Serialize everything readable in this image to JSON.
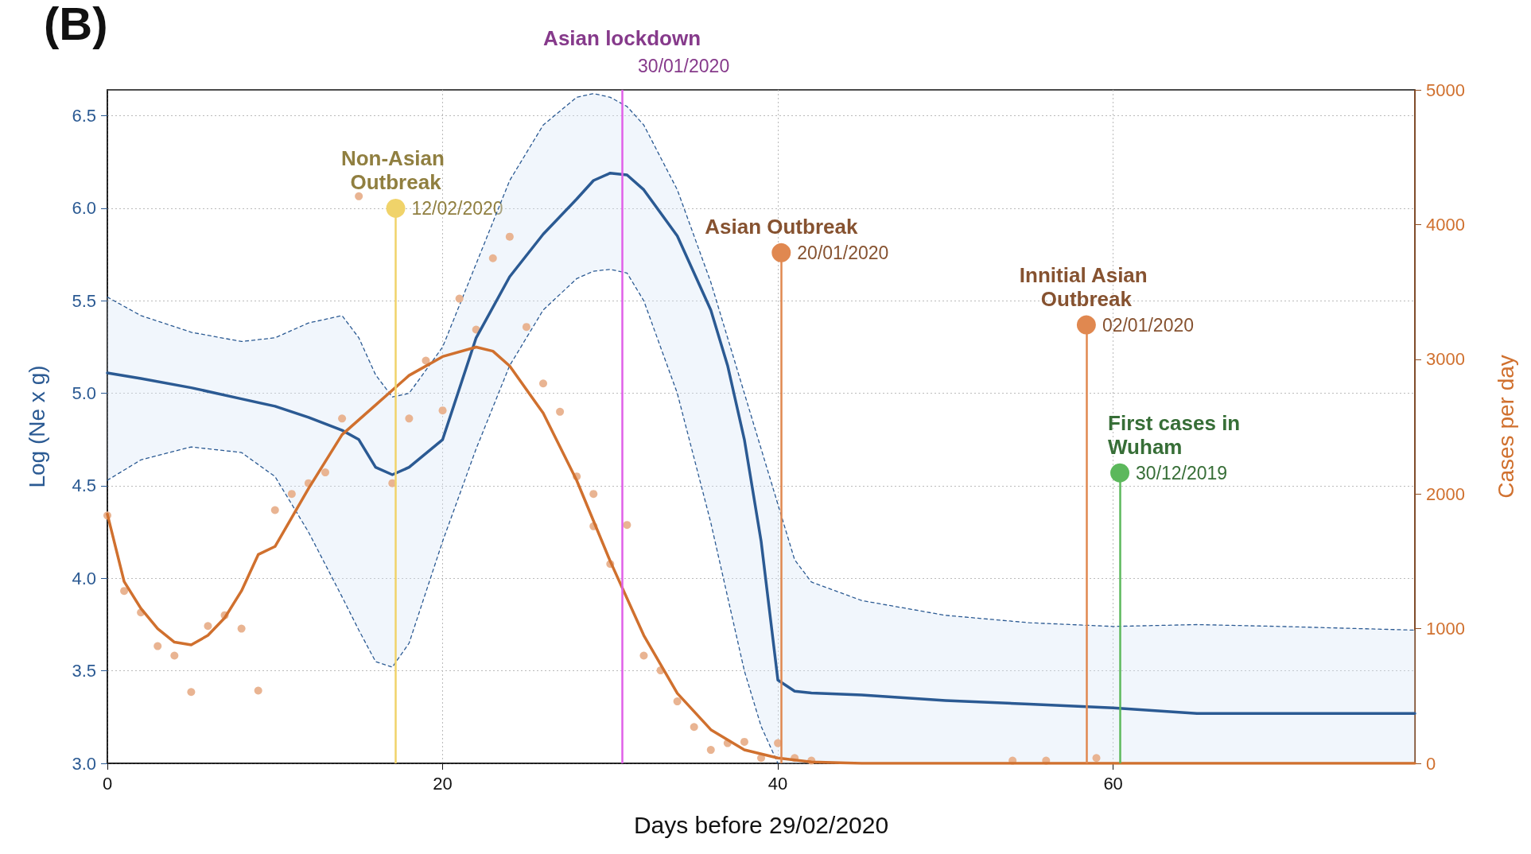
{
  "chart_data": {
    "type": "line",
    "title": "(B)",
    "xlabel": "Days before 29/02/2020",
    "ylabel": "Log (Ne x g)",
    "y2label": "Cases per day",
    "xlim": [
      0,
      78
    ],
    "xticks": [
      0,
      20,
      40,
      60
    ],
    "ylim": [
      3.0,
      6.64
    ],
    "yticks": [
      {
        "value": 3,
        "label": "3.0"
      },
      3.5,
      {
        "value": 4,
        "label": "4.0"
      },
      4.5,
      {
        "value": 5,
        "label": "5.0"
      },
      5.5,
      {
        "value": 6,
        "label": "6.0"
      },
      6.5
    ],
    "y2lim": [
      0,
      5000
    ],
    "y2ticks": [
      0,
      1000,
      2000,
      3000,
      4000,
      5000
    ],
    "grid": true,
    "series": [
      {
        "color": "#2b5a93",
        "marker": "none",
        "line_style": "solid",
        "x": [
          0,
          2,
          5,
          8,
          10,
          12,
          14,
          15,
          16,
          17,
          18,
          20,
          22,
          24,
          26,
          28,
          29,
          30,
          31,
          32,
          34,
          36,
          37,
          38,
          39,
          40,
          41,
          42,
          45,
          50,
          55,
          60,
          65,
          70,
          78
        ],
        "values": [
          5.11,
          5.08,
          5.03,
          4.97,
          4.93,
          4.87,
          4.8,
          4.75,
          4.6,
          4.56,
          4.6,
          4.75,
          5.3,
          5.63,
          5.86,
          6.05,
          6.15,
          6.19,
          6.18,
          6.1,
          5.85,
          5.45,
          5.15,
          4.75,
          4.2,
          3.45,
          3.39,
          3.38,
          3.37,
          3.34,
          3.32,
          3.3,
          3.27,
          3.27,
          3.27
        ],
        "lower": [
          4.53,
          4.64,
          4.71,
          4.68,
          4.55,
          4.25,
          3.9,
          3.72,
          3.55,
          3.52,
          3.65,
          4.2,
          4.7,
          5.15,
          5.45,
          5.62,
          5.66,
          5.67,
          5.65,
          5.5,
          5.0,
          4.3,
          3.9,
          3.5,
          3.2,
          3.0,
          3.0,
          3.0,
          3.0,
          3.0,
          3.0,
          3.0,
          3.0,
          3.0,
          3.0
        ],
        "upper": [
          5.52,
          5.42,
          5.33,
          5.28,
          5.3,
          5.38,
          5.42,
          5.3,
          5.1,
          4.98,
          5.0,
          5.25,
          5.7,
          6.15,
          6.45,
          6.6,
          6.62,
          6.6,
          6.55,
          6.45,
          6.1,
          5.6,
          5.3,
          5.0,
          4.7,
          4.4,
          4.1,
          3.98,
          3.88,
          3.8,
          3.76,
          3.74,
          3.75,
          3.74,
          3.72
        ]
      },
      {
        "color": "#2b5a93",
        "marker": "none",
        "line_style": "dashed",
        "x": [
          0,
          2,
          5,
          8,
          10,
          12,
          14,
          15,
          16,
          17,
          18,
          20,
          22,
          24,
          26,
          28,
          29,
          30,
          31,
          32,
          34,
          36,
          37,
          38,
          39,
          40,
          41,
          42,
          45,
          50,
          55,
          60,
          65,
          70,
          78
        ],
        "values": [
          5.52,
          5.42,
          5.33,
          5.28,
          5.3,
          5.38,
          5.42,
          5.3,
          5.1,
          4.98,
          5.0,
          5.25,
          5.7,
          6.15,
          6.45,
          6.6,
          6.62,
          6.6,
          6.55,
          6.45,
          6.1,
          5.6,
          5.3,
          5.0,
          4.7,
          4.4,
          4.1,
          3.98,
          3.88,
          3.8,
          3.76,
          3.74,
          3.75,
          3.74,
          3.72
        ]
      },
      {
        "color": "#2b5a93",
        "marker": "none",
        "line_style": "dashed",
        "x": [
          0,
          2,
          5,
          8,
          10,
          12,
          14,
          15,
          16,
          17,
          18,
          20,
          22,
          24,
          26,
          28,
          29,
          30,
          31,
          32,
          34,
          36,
          37,
          38,
          39,
          40
        ],
        "values": [
          4.53,
          4.64,
          4.71,
          4.68,
          4.55,
          4.25,
          3.9,
          3.72,
          3.55,
          3.52,
          3.65,
          4.2,
          4.7,
          5.15,
          5.45,
          5.62,
          5.66,
          5.67,
          5.65,
          5.5,
          5.0,
          4.3,
          3.9,
          3.5,
          3.2,
          3.0
        ]
      },
      {
        "axis": "y2",
        "color": "#d0702e",
        "marker": "none",
        "line_style": "solid",
        "x": [
          0,
          1,
          2,
          3,
          4,
          5,
          6,
          7,
          8,
          9,
          10,
          12,
          14,
          16,
          18,
          20,
          22,
          23,
          24,
          26,
          28,
          30,
          32,
          34,
          36,
          38,
          40,
          42,
          45,
          50,
          60,
          78
        ],
        "values": [
          1850,
          1350,
          1150,
          1000,
          900,
          880,
          950,
          1080,
          1280,
          1550,
          1610,
          2040,
          2440,
          2660,
          2880,
          3020,
          3090,
          3060,
          2950,
          2600,
          2100,
          1500,
          950,
          520,
          250,
          100,
          40,
          10,
          0,
          0,
          0,
          0
        ]
      },
      {
        "type": "scatter",
        "axis": "y2",
        "color": "#e8b08c",
        "marker": "circle",
        "x": [
          0,
          1,
          2,
          3,
          4,
          5,
          6,
          7,
          8,
          9,
          10,
          11,
          12,
          13,
          14,
          15,
          17,
          18,
          19,
          20,
          21,
          22,
          23,
          24,
          25,
          26,
          27,
          28,
          29,
          29,
          30,
          31,
          32,
          33,
          34,
          35,
          36,
          37,
          38,
          39,
          40,
          41,
          42,
          54,
          56,
          59
        ],
        "values": [
          1840,
          1280,
          1120,
          870,
          800,
          530,
          1020,
          1100,
          1000,
          540,
          1880,
          2000,
          2080,
          2160,
          2560,
          4210,
          2080,
          2560,
          2990,
          2620,
          3450,
          3220,
          3750,
          3910,
          3240,
          2820,
          2610,
          2130,
          2000,
          1760,
          1480,
          1770,
          800,
          690,
          460,
          270,
          100,
          150,
          160,
          40,
          150,
          40,
          20,
          20,
          20,
          40
        ]
      }
    ],
    "ref_lines": [
      {
        "axis": "x",
        "value": 17.2,
        "label": "Non-Asian Outbreak",
        "color": "#f0d36a"
      },
      {
        "axis": "x",
        "value": 30.7,
        "label": "Asian lockdown",
        "color": "#e060e8"
      },
      {
        "axis": "x",
        "value": 40.2,
        "label": "Asian Outbreak",
        "color": "#e08850"
      },
      {
        "axis": "x",
        "value": 58.4,
        "label": "Innitial Asian Outbreak",
        "color": "#e08850"
      },
      {
        "axis": "x",
        "value": 60.4,
        "label": "First cases in Wuham",
        "color": "#5cb85c"
      }
    ],
    "annotations": [
      {
        "text": "12/02/2020",
        "x": 17.2,
        "y": 6.0
      },
      "30/01/2020",
      {
        "text": "20/01/2020",
        "x": 40.2,
        "y": 5.76
      },
      {
        "text": "02/01/2020",
        "x": 58.4,
        "y": 5.37
      },
      {
        "text": "30/12/2019",
        "x": 60.4,
        "y": 4.57
      }
    ]
  }
}
